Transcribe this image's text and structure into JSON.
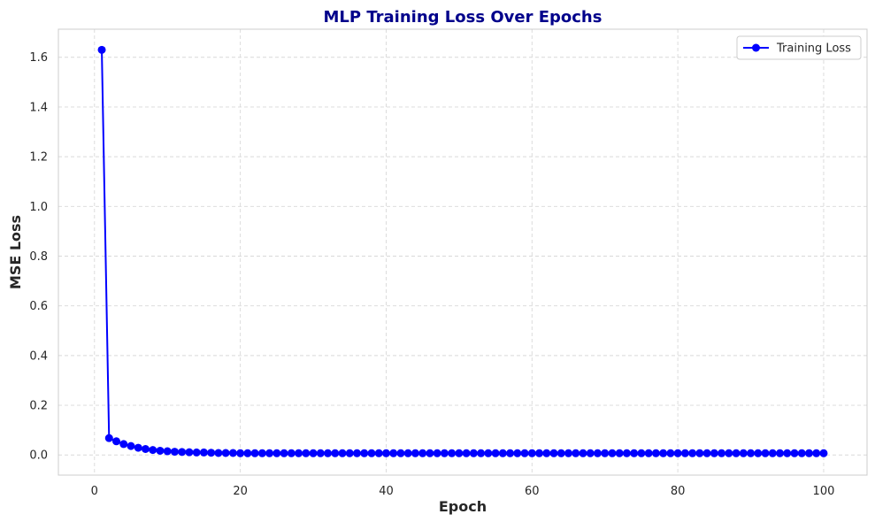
{
  "colors": {
    "title": "#00008B",
    "series": "#0000FF",
    "grid": "#D9D9D9",
    "frame": "#CCCCCC",
    "text": "#262626"
  },
  "chart_data": {
    "type": "line",
    "title": "MLP Training Loss Over Epochs",
    "xlabel": "Epoch",
    "ylabel": "MSE Loss",
    "xlim": [
      -4.95,
      105.95
    ],
    "ylim": [
      -0.081,
      1.713
    ],
    "xticks": [
      0,
      20,
      40,
      60,
      80,
      100
    ],
    "yticks": [
      0.0,
      0.2,
      0.4,
      0.6,
      0.8,
      1.0,
      1.2,
      1.4,
      1.6
    ],
    "ytick_labels": [
      "0.0",
      "0.2",
      "0.4",
      "0.6",
      "0.8",
      "1.0",
      "1.2",
      "1.4",
      "1.6"
    ],
    "grid": true,
    "grid_style": "dashed",
    "legend_position": "top-right",
    "series": [
      {
        "name": "Training Loss",
        "marker": "circle",
        "x": [
          1,
          2,
          3,
          4,
          5,
          6,
          7,
          8,
          9,
          10,
          11,
          12,
          13,
          14,
          15,
          16,
          17,
          18,
          19,
          20,
          21,
          22,
          23,
          24,
          25,
          26,
          27,
          28,
          29,
          30,
          31,
          32,
          33,
          34,
          35,
          36,
          37,
          38,
          39,
          40,
          41,
          42,
          43,
          44,
          45,
          46,
          47,
          48,
          49,
          50,
          51,
          52,
          53,
          54,
          55,
          56,
          57,
          58,
          59,
          60,
          61,
          62,
          63,
          64,
          65,
          66,
          67,
          68,
          69,
          70,
          71,
          72,
          73,
          74,
          75,
          76,
          77,
          78,
          79,
          80,
          81,
          82,
          83,
          84,
          85,
          86,
          87,
          88,
          89,
          90,
          91,
          92,
          93,
          94,
          95,
          96,
          97,
          98,
          99,
          100
        ],
        "y": [
          1.63,
          0.068,
          0.055,
          0.044,
          0.036,
          0.029,
          0.024,
          0.02,
          0.017,
          0.015,
          0.013,
          0.012,
          0.011,
          0.01,
          0.01,
          0.009,
          0.008,
          0.008,
          0.008,
          0.007,
          0.007,
          0.007,
          0.007,
          0.007,
          0.007,
          0.007,
          0.007,
          0.007,
          0.007,
          0.007,
          0.007,
          0.007,
          0.007,
          0.007,
          0.007,
          0.007,
          0.007,
          0.007,
          0.007,
          0.007,
          0.007,
          0.007,
          0.007,
          0.007,
          0.007,
          0.007,
          0.007,
          0.007,
          0.007,
          0.007,
          0.007,
          0.007,
          0.007,
          0.007,
          0.007,
          0.007,
          0.007,
          0.007,
          0.007,
          0.007,
          0.007,
          0.007,
          0.007,
          0.007,
          0.007,
          0.007,
          0.007,
          0.007,
          0.007,
          0.007,
          0.007,
          0.007,
          0.007,
          0.007,
          0.007,
          0.007,
          0.007,
          0.007,
          0.007,
          0.007,
          0.007,
          0.007,
          0.007,
          0.007,
          0.007,
          0.007,
          0.007,
          0.007,
          0.007,
          0.007,
          0.007,
          0.007,
          0.007,
          0.007,
          0.007,
          0.007,
          0.007,
          0.007,
          0.007,
          0.007
        ]
      }
    ]
  }
}
